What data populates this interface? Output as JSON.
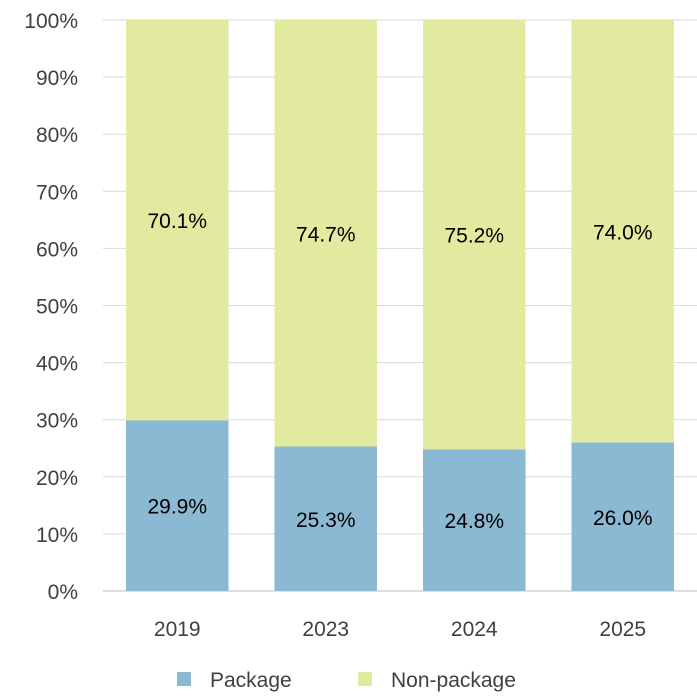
{
  "chart_data": {
    "type": "bar",
    "stacked": true,
    "percent_stacked": true,
    "categories": [
      "2019",
      "2023",
      "2024",
      "2025"
    ],
    "series": [
      {
        "name": "Package",
        "values": [
          29.9,
          25.3,
          24.8,
          26.0
        ],
        "labels": [
          "29.9%",
          "25.3%",
          "24.8%",
          "26.0%"
        ],
        "color": "#8BB8D3"
      },
      {
        "name": "Non-package",
        "values": [
          70.1,
          74.7,
          75.2,
          74.0
        ],
        "labels": [
          "70.1%",
          "74.7%",
          "75.2%",
          "74.0%"
        ],
        "color": "#E1EA9F"
      }
    ],
    "y_ticks": [
      "0%",
      "10%",
      "20%",
      "30%",
      "40%",
      "50%",
      "60%",
      "70%",
      "80%",
      "90%",
      "100%"
    ],
    "ylim": [
      0,
      100
    ],
    "grid": true,
    "legend": "bottom",
    "title": "",
    "xlabel": "",
    "ylabel": ""
  }
}
